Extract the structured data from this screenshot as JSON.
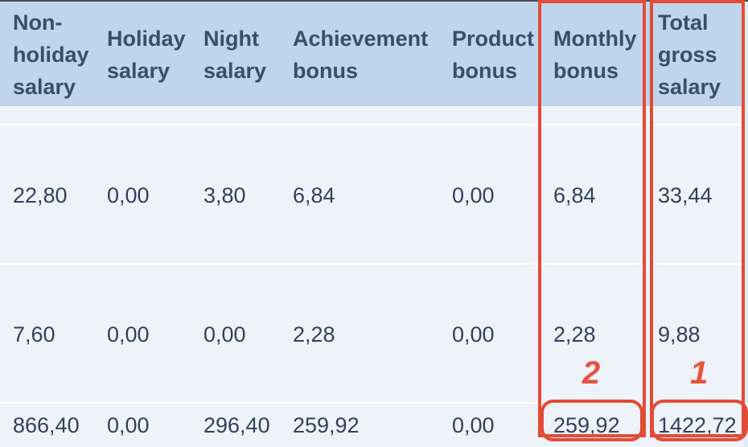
{
  "table": {
    "columns": [
      {
        "key": "non_holiday_salary",
        "lines": [
          "Non-",
          "holiday",
          "salary"
        ]
      },
      {
        "key": "holiday_salary",
        "lines": [
          "Holiday",
          "salary"
        ]
      },
      {
        "key": "night_salary",
        "lines": [
          "Night",
          "salary"
        ]
      },
      {
        "key": "achievement_bonus",
        "lines": [
          "Achievement",
          "bonus"
        ]
      },
      {
        "key": "product_bonus",
        "lines": [
          "Product",
          "bonus"
        ]
      },
      {
        "key": "monthly_bonus",
        "lines": [
          "Monthly",
          "bonus"
        ]
      },
      {
        "key": "total_gross_salary",
        "lines": [
          "Total",
          "gross",
          "salary"
        ]
      }
    ],
    "rows": [
      [
        "22,80",
        "0,00",
        "3,80",
        "6,84",
        "0,00",
        "6,84",
        "33,44"
      ],
      [
        "7,60",
        "0,00",
        "0,00",
        "2,28",
        "0,00",
        "2,28",
        "9,88"
      ],
      [
        "866,40",
        "0,00",
        "296,40",
        "259,92",
        "0,00",
        "259,92",
        "1422,72"
      ]
    ]
  },
  "annotations": {
    "marker_total": "1",
    "marker_monthly": "2",
    "color": "#e24b36"
  },
  "colors": {
    "header_bg": "#bfd5eb",
    "body_bg": "#eef3fa",
    "text": "#33415c"
  }
}
